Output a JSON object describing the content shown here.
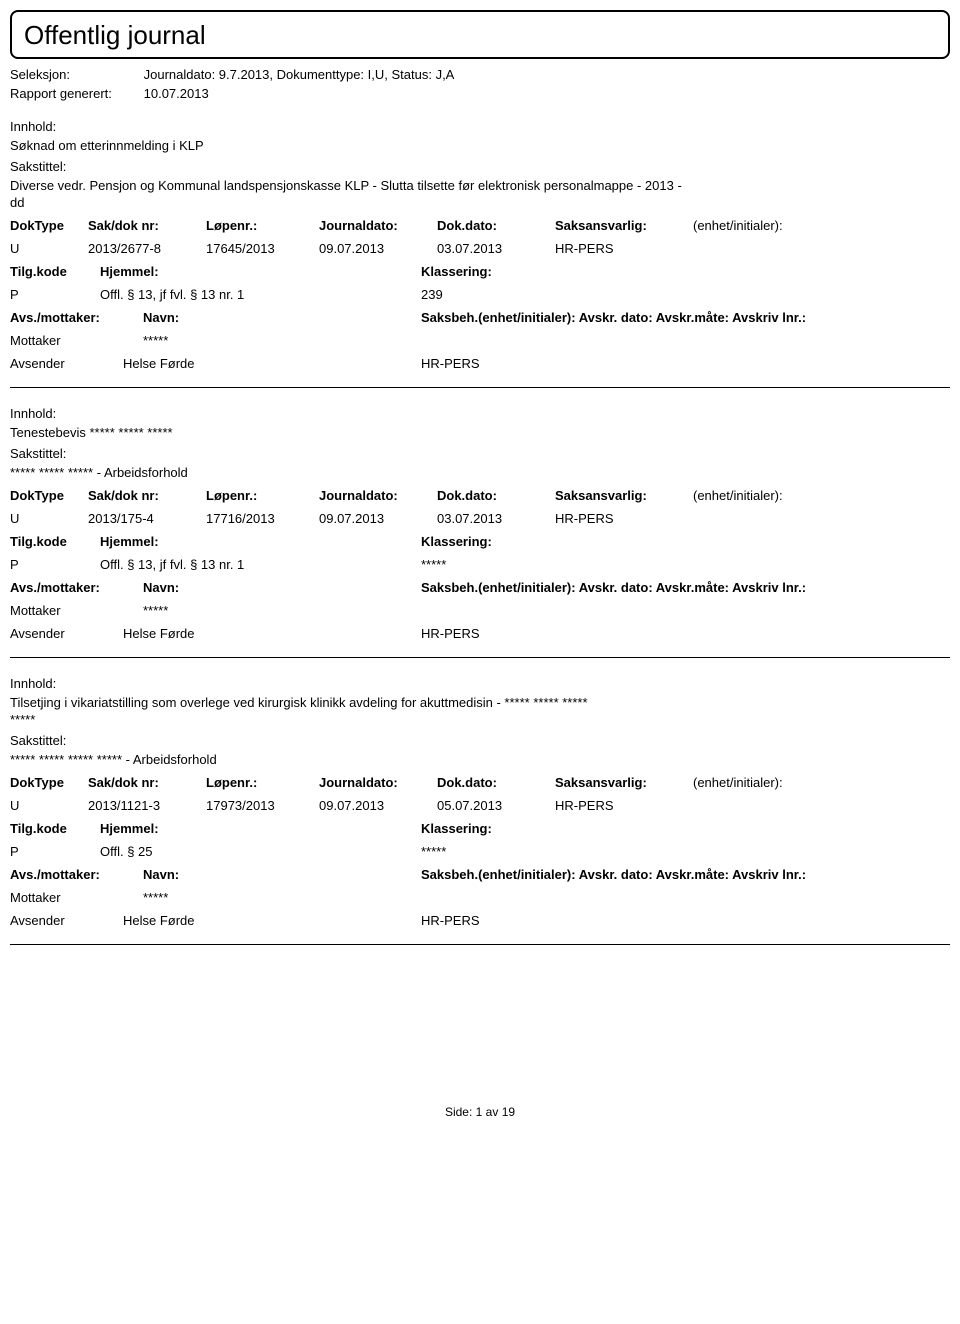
{
  "header": {
    "title": "Offentlig journal",
    "seleksjon_label": "Seleksjon:",
    "seleksjon_value": "Journaldato: 9.7.2013, Dokumenttype: I,U, Status: J,A",
    "rapport_label": "Rapport generert:",
    "rapport_value": "10.07.2013"
  },
  "labels": {
    "innhold": "Innhold:",
    "sakstittel": "Sakstittel:",
    "doktype": "DokType",
    "sakdok": "Sak/dok nr:",
    "lopenr": "Løpenr.:",
    "journaldato": "Journaldato:",
    "dokdato": "Dok.dato:",
    "saksansvarlig": "Saksansvarlig:",
    "enhet": "(enhet/initialer):",
    "tilgkode": "Tilg.kode",
    "hjemmel": "Hjemmel:",
    "klassering": "Klassering:",
    "avsmottaker": "Avs./mottaker:",
    "navn": "Navn:",
    "saksbeh": "Saksbeh.(enhet/initialer): Avskr. dato: Avskr.måte: Avskriv lnr.:",
    "mottaker": "Mottaker",
    "avsender": "Avsender"
  },
  "entries": [
    {
      "innhold": "Søknad om etterinnmelding  i KLP",
      "sakstittel_1": "Diverse vedr. Pensjon og Kommunal landspensjonskasse KLP - Slutta tilsette før elektronisk personalmappe - 2013 -",
      "sakstittel_2": "dd",
      "doktype": "U",
      "sakdok": "2013/2677-8",
      "lopenr": "17645/2013",
      "journaldato": "09.07.2013",
      "dokdato": "03.07.2013",
      "saksansvarlig": "HR-PERS",
      "tilgkode": "P",
      "hjemmel": "Offl. § 13, jf fvl. § 13 nr. 1",
      "klassering": "239",
      "mottaker_navn": "*****",
      "avsender_navn": "Helse Førde",
      "avsender_dept": "HR-PERS"
    },
    {
      "innhold": "Tenestebevis  ***** ***** *****",
      "sakstittel_1": "***** ***** ***** - Arbeidsforhold",
      "sakstittel_2": "",
      "doktype": "U",
      "sakdok": "2013/175-4",
      "lopenr": "17716/2013",
      "journaldato": "09.07.2013",
      "dokdato": "03.07.2013",
      "saksansvarlig": "HR-PERS",
      "tilgkode": "P",
      "hjemmel": "Offl. § 13, jf fvl. § 13 nr. 1",
      "klassering": "*****",
      "mottaker_navn": "*****",
      "avsender_navn": "Helse Førde",
      "avsender_dept": "HR-PERS"
    },
    {
      "innhold": "Tilsetjing i vikariatstilling som overlege ved kirurgisk klinikk avdeling for akuttmedisin -  ***** ***** *****",
      "innhold_2": "*****",
      "sakstittel_1": "***** ***** ***** ***** - Arbeidsforhold",
      "sakstittel_2": "",
      "doktype": "U",
      "sakdok": "2013/1121-3",
      "lopenr": "17973/2013",
      "journaldato": "09.07.2013",
      "dokdato": "05.07.2013",
      "saksansvarlig": "HR-PERS",
      "tilgkode": "P",
      "hjemmel": "Offl. § 25",
      "klassering": "*****",
      "mottaker_navn": "*****",
      "avsender_navn": "Helse Førde",
      "avsender_dept": "HR-PERS"
    }
  ],
  "footer": {
    "side_label": "Side:",
    "page_current": "1",
    "page_sep": "av",
    "page_total": "19"
  }
}
